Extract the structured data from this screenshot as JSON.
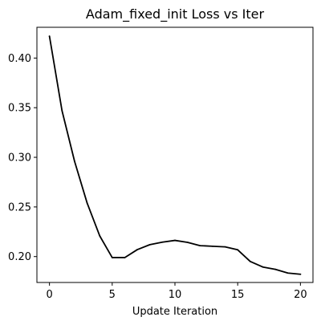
{
  "chart_data": {
    "type": "line",
    "title": "Adam_fixed_init Loss vs Iter",
    "xlabel": "Update Iteration",
    "ylabel": "",
    "xlim": [
      -1,
      21
    ],
    "ylim": [
      0.1739,
      0.431
    ],
    "xticks": [
      0,
      5,
      10,
      15,
      20
    ],
    "xtick_labels": [
      "0",
      "5",
      "10",
      "15",
      "20"
    ],
    "yticks": [
      0.2,
      0.25,
      0.3,
      0.35,
      0.4
    ],
    "ytick_labels": [
      "0.20",
      "0.25",
      "0.30",
      "0.35",
      "0.40"
    ],
    "grid": false,
    "legend": false,
    "line_color": "#000000",
    "series": [
      {
        "x": [
          0,
          1,
          2,
          3,
          4,
          5,
          6,
          7,
          8,
          9,
          10,
          11,
          12,
          13,
          14,
          15,
          16,
          17,
          18,
          19,
          20
        ],
        "values": [
          0.422,
          0.347,
          0.296,
          0.254,
          0.221,
          0.199,
          0.199,
          0.207,
          0.212,
          0.2145,
          0.2163,
          0.2143,
          0.211,
          0.2104,
          0.2098,
          0.2068,
          0.1951,
          0.1895,
          0.1871,
          0.1834,
          0.1822
        ]
      }
    ]
  }
}
